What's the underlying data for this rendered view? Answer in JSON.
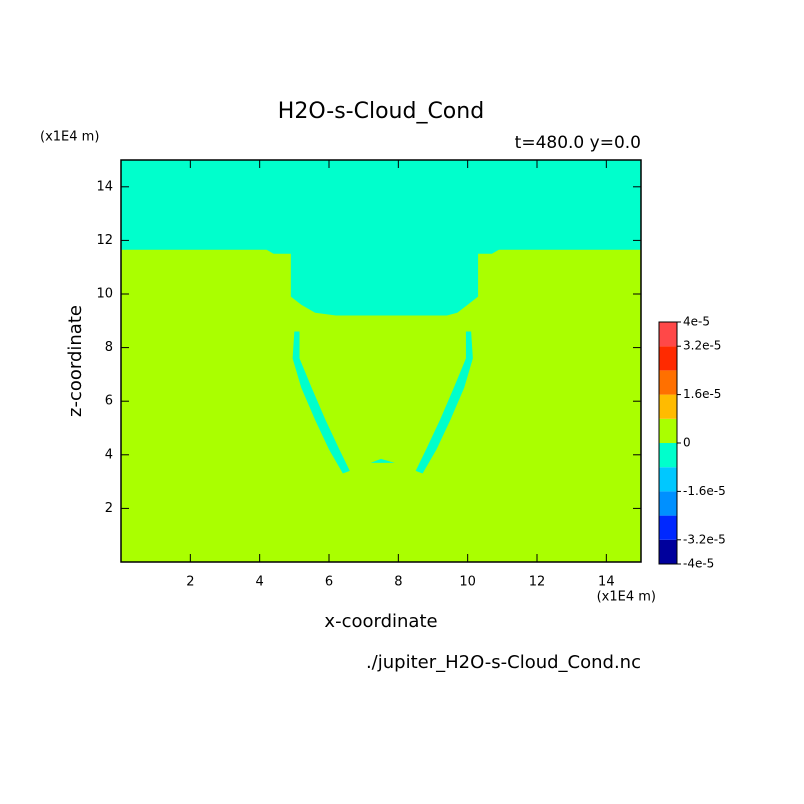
{
  "chart_data": {
    "type": "filled-contour",
    "title": "H2O-s-Cloud_Cond",
    "subtitle": "t=480.0 y=0.0",
    "x_label": "x-coordinate",
    "y_label": "z-coordinate",
    "x_unit": "(x1E4 m)",
    "y_unit": "(x1E4 m)",
    "source": "./jupiter_H2O-s-Cloud_Cond.nc",
    "xlim": [
      0,
      15
    ],
    "ylim": [
      0,
      15
    ],
    "xticks": [
      2,
      4,
      6,
      8,
      10,
      12,
      14
    ],
    "yticks": [
      2,
      4,
      6,
      8,
      10,
      12,
      14
    ],
    "levels": [
      -4e-05,
      -3.2e-05,
      -2.4e-05,
      -1.6e-05,
      -8e-06,
      0,
      8e-06,
      1.6e-05,
      2.4e-05,
      3.2e-05,
      4e-05
    ],
    "colors": [
      "#00009c",
      "#0028ff",
      "#0090ff",
      "#00c8ff",
      "#00ffcc",
      "#aaff00",
      "#ffbb00",
      "#ff7000",
      "#ff2a00",
      "#ff4848"
    ],
    "colorbar_ticks": [
      {
        "value": 4e-05,
        "label": "4e-5"
      },
      {
        "value": 3.2e-05,
        "label": "3.2e-5"
      },
      {
        "value": 1.6e-05,
        "label": "1.6e-5"
      },
      0,
      {
        "value": -1.6e-05,
        "label": "-1.6e-5"
      },
      {
        "value": -3.2e-05,
        "label": "-3.2e-5"
      },
      {
        "value": -4e-05,
        "label": "-4e-5"
      }
    ],
    "background_range": [
      0,
      8e-06
    ],
    "regions": [
      {
        "range": [
          -8e-06,
          0
        ],
        "polygon": [
          [
            0,
            15
          ],
          [
            15,
            15
          ],
          [
            15,
            11.65
          ],
          [
            10.9,
            11.65
          ],
          [
            10.7,
            11.5
          ],
          [
            10.3,
            11.5
          ],
          [
            10.3,
            9.9
          ],
          [
            10.0,
            9.6
          ],
          [
            9.7,
            9.3
          ],
          [
            9.4,
            9.2
          ],
          [
            6.2,
            9.2
          ],
          [
            5.6,
            9.3
          ],
          [
            5.2,
            9.6
          ],
          [
            4.9,
            9.9
          ],
          [
            4.9,
            11.5
          ],
          [
            4.4,
            11.5
          ],
          [
            4.2,
            11.65
          ],
          [
            0,
            11.65
          ]
        ]
      },
      {
        "range": [
          -8e-06,
          0
        ],
        "polygon": [
          [
            5.0,
            8.6
          ],
          [
            5.15,
            8.6
          ],
          [
            5.15,
            7.6
          ],
          [
            5.5,
            6.5
          ],
          [
            5.9,
            5.3
          ],
          [
            6.3,
            4.2
          ],
          [
            6.6,
            3.4
          ],
          [
            6.4,
            3.3
          ],
          [
            6.0,
            4.2
          ],
          [
            5.6,
            5.3
          ],
          [
            5.2,
            6.5
          ],
          [
            4.95,
            7.6
          ]
        ]
      },
      {
        "range": [
          -8e-06,
          0
        ],
        "polygon": [
          [
            10.1,
            8.6
          ],
          [
            9.95,
            8.6
          ],
          [
            9.95,
            7.6
          ],
          [
            9.6,
            6.5
          ],
          [
            9.2,
            5.3
          ],
          [
            8.8,
            4.2
          ],
          [
            8.5,
            3.4
          ],
          [
            8.7,
            3.3
          ],
          [
            9.1,
            4.2
          ],
          [
            9.5,
            5.3
          ],
          [
            9.9,
            6.5
          ],
          [
            10.15,
            7.6
          ]
        ]
      },
      {
        "range": [
          -8e-06,
          0
        ],
        "polygon": [
          [
            7.2,
            3.7
          ],
          [
            7.5,
            3.85
          ],
          [
            7.9,
            3.7
          ]
        ]
      }
    ]
  }
}
